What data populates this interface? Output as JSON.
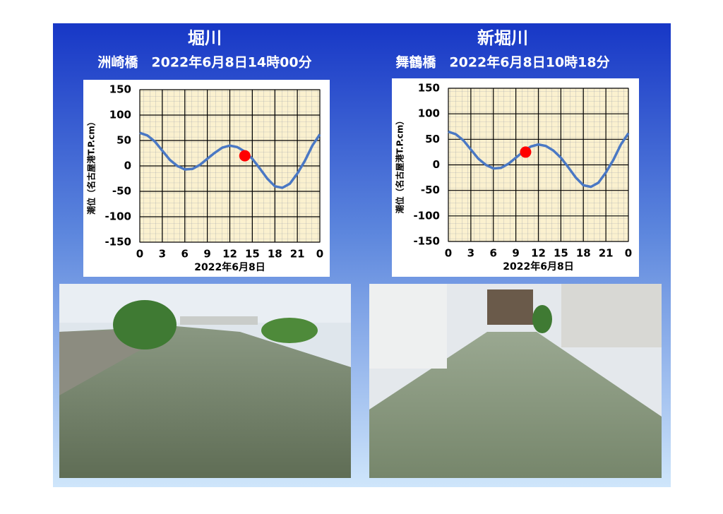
{
  "chart_data": [
    {
      "type": "line",
      "title": "堀川",
      "subtitle": "洲崎橋　2022年6月8日14時00分",
      "ylabel": "潮位（名古屋港T.P.cm）",
      "xlabel": "2022年6月8日",
      "x": [
        0,
        1,
        2,
        3,
        4,
        5,
        6,
        7,
        8,
        9,
        10,
        11,
        12,
        13,
        14,
        15,
        16,
        17,
        18,
        19,
        20,
        21,
        22,
        23,
        24
      ],
      "values": [
        65,
        60,
        48,
        30,
        12,
        0,
        -7,
        -6,
        2,
        14,
        26,
        36,
        40,
        37,
        28,
        14,
        -5,
        -25,
        -40,
        -43,
        -35,
        -15,
        10,
        40,
        62
      ],
      "color": "#4a78c4",
      "marker": {
        "x": 14,
        "y": 20,
        "color": "#ff0000"
      },
      "xlim": [
        0,
        24
      ],
      "xticks": [
        0,
        3,
        6,
        9,
        12,
        15,
        18,
        21,
        {
          "value": 24,
          "label": "0"
        }
      ],
      "ylim": [
        -150,
        150
      ],
      "yticks": [
        -150,
        -100,
        -50,
        0,
        50,
        100,
        150
      ],
      "grid": true
    },
    {
      "type": "line",
      "title": "新堀川",
      "subtitle": "舞鶴橋　2022年6月8日10時18分",
      "ylabel": "潮位（名古屋港T.P.cm）",
      "xlabel": "2022年6月8日",
      "x": [
        0,
        1,
        2,
        3,
        4,
        5,
        6,
        7,
        8,
        9,
        10,
        11,
        12,
        13,
        14,
        15,
        16,
        17,
        18,
        19,
        20,
        21,
        22,
        23,
        24
      ],
      "values": [
        65,
        60,
        48,
        30,
        12,
        0,
        -7,
        -6,
        2,
        14,
        26,
        36,
        40,
        37,
        28,
        14,
        -5,
        -25,
        -40,
        -43,
        -35,
        -15,
        10,
        40,
        62
      ],
      "color": "#4a78c4",
      "marker": {
        "x": 10.3,
        "y": 25,
        "color": "#ff0000"
      },
      "xlim": [
        0,
        24
      ],
      "xticks": [
        0,
        3,
        6,
        9,
        12,
        15,
        18,
        21,
        {
          "value": 24,
          "label": "0"
        }
      ],
      "ylim": [
        -150,
        150
      ],
      "yticks": [
        -150,
        -100,
        -50,
        0,
        50,
        100,
        150
      ],
      "grid": true
    }
  ]
}
